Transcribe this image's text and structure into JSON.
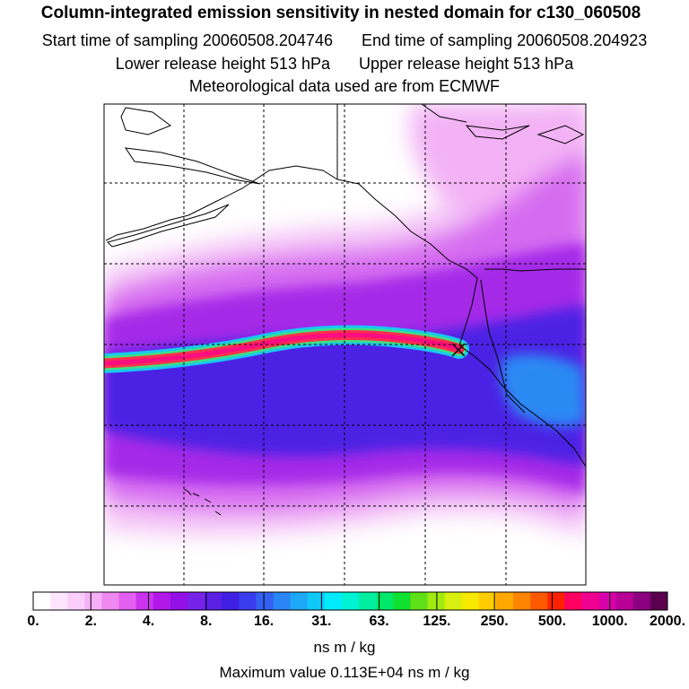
{
  "title": "Column-integrated emission sensitivity in nested domain for c130_060508",
  "sampling": {
    "start_label": "Start time of sampling",
    "start": "20060508.204746",
    "end_label": "End time of sampling",
    "end": "20060508.204923"
  },
  "release": {
    "lower_label": "Lower release height",
    "lower": "513 hPa",
    "upper_label": "Upper release height",
    "upper": "513 hPa"
  },
  "met_line": "Meteorological data used are from ECMWF",
  "colorbar": {
    "labels": [
      "0.",
      "2.",
      "4.",
      "8.",
      "16.",
      "31.",
      "63.",
      "125.",
      "250.",
      "500.",
      "1000.",
      "2000."
    ],
    "colors": [
      "#ffffff",
      "#fde6fd",
      "#fbcdfb",
      "#f7b0f7",
      "#ef88f1",
      "#e25ff0",
      "#cc33ee",
      "#b318ea",
      "#9310e6",
      "#7722e8",
      "#5a20e6",
      "#3f1fe4",
      "#3a3cef",
      "#3260f2",
      "#2a86f5",
      "#1ea8f8",
      "#10c9fb",
      "#00ecfe",
      "#00f2d4",
      "#00eea0",
      "#00e86a",
      "#10e030",
      "#60e018",
      "#a0ea10",
      "#d8f010",
      "#f6e800",
      "#ffcc00",
      "#ffa800",
      "#ff8400",
      "#ff5a00",
      "#ff2200",
      "#ff0060",
      "#f00090",
      "#d800a8",
      "#b80098",
      "#8c0080",
      "#5c0050"
    ],
    "units": "ns m / kg"
  },
  "max_value": {
    "label": "Maximum value",
    "value": "0.113E+04",
    "units": "ns m / kg"
  }
}
